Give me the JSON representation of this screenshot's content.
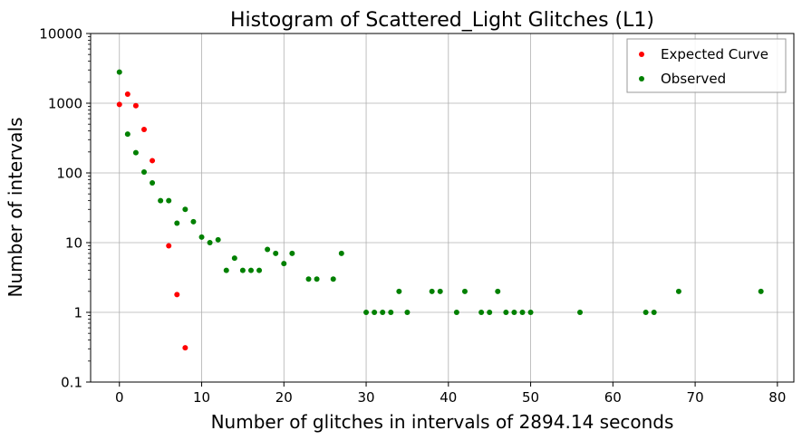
{
  "chart_data": {
    "type": "scatter",
    "title": "Histogram of Scattered_Light Glitches (L1)",
    "xlabel": "Number of glitches in intervals of 2894.14 seconds",
    "ylabel": "Number of intervals",
    "xlim": [
      -3.5,
      82
    ],
    "ylim": [
      0.1,
      10000
    ],
    "yscale": "log",
    "grid": true,
    "legend_position": "top-right",
    "x_ticks": [
      0,
      10,
      20,
      30,
      40,
      50,
      60,
      70,
      80
    ],
    "x_tick_labels": [
      "0",
      "10",
      "20",
      "30",
      "40",
      "50",
      "60",
      "70",
      "80"
    ],
    "y_ticks": [
      0.1,
      1,
      10,
      100,
      1000,
      10000
    ],
    "y_tick_labels": [
      "0.1",
      "1",
      "10",
      "100",
      "1000",
      "10000"
    ],
    "series": [
      {
        "name": "Expected Curve",
        "color": "#ff0000",
        "points": [
          [
            0,
            960
          ],
          [
            1,
            1350
          ],
          [
            2,
            920
          ],
          [
            3,
            420
          ],
          [
            4,
            150
          ],
          [
            6,
            9
          ],
          [
            7,
            1.8
          ],
          [
            8,
            0.31
          ]
        ]
      },
      {
        "name": "Observed",
        "color": "#008000",
        "points": [
          [
            0,
            2800
          ],
          [
            1,
            360
          ],
          [
            2,
            195
          ],
          [
            3,
            103
          ],
          [
            4,
            72
          ],
          [
            5,
            40
          ],
          [
            6,
            40
          ],
          [
            7,
            19
          ],
          [
            8,
            30
          ],
          [
            9,
            20
          ],
          [
            10,
            12
          ],
          [
            11,
            10
          ],
          [
            12,
            11
          ],
          [
            13,
            4
          ],
          [
            14,
            6
          ],
          [
            15,
            4
          ],
          [
            16,
            4
          ],
          [
            17,
            4
          ],
          [
            18,
            8
          ],
          [
            19,
            7
          ],
          [
            20,
            5
          ],
          [
            21,
            7
          ],
          [
            23,
            3
          ],
          [
            24,
            3
          ],
          [
            26,
            3
          ],
          [
            27,
            7
          ],
          [
            30,
            1
          ],
          [
            31,
            1
          ],
          [
            32,
            1
          ],
          [
            33,
            1
          ],
          [
            34,
            2
          ],
          [
            35,
            1
          ],
          [
            38,
            2
          ],
          [
            39,
            2
          ],
          [
            41,
            1
          ],
          [
            42,
            2
          ],
          [
            44,
            1
          ],
          [
            45,
            1
          ],
          [
            46,
            2
          ],
          [
            47,
            1
          ],
          [
            48,
            1
          ],
          [
            49,
            1
          ],
          [
            50,
            1
          ],
          [
            56,
            1
          ],
          [
            64,
            1
          ],
          [
            65,
            1
          ],
          [
            68,
            2
          ],
          [
            78,
            2
          ]
        ]
      }
    ]
  }
}
